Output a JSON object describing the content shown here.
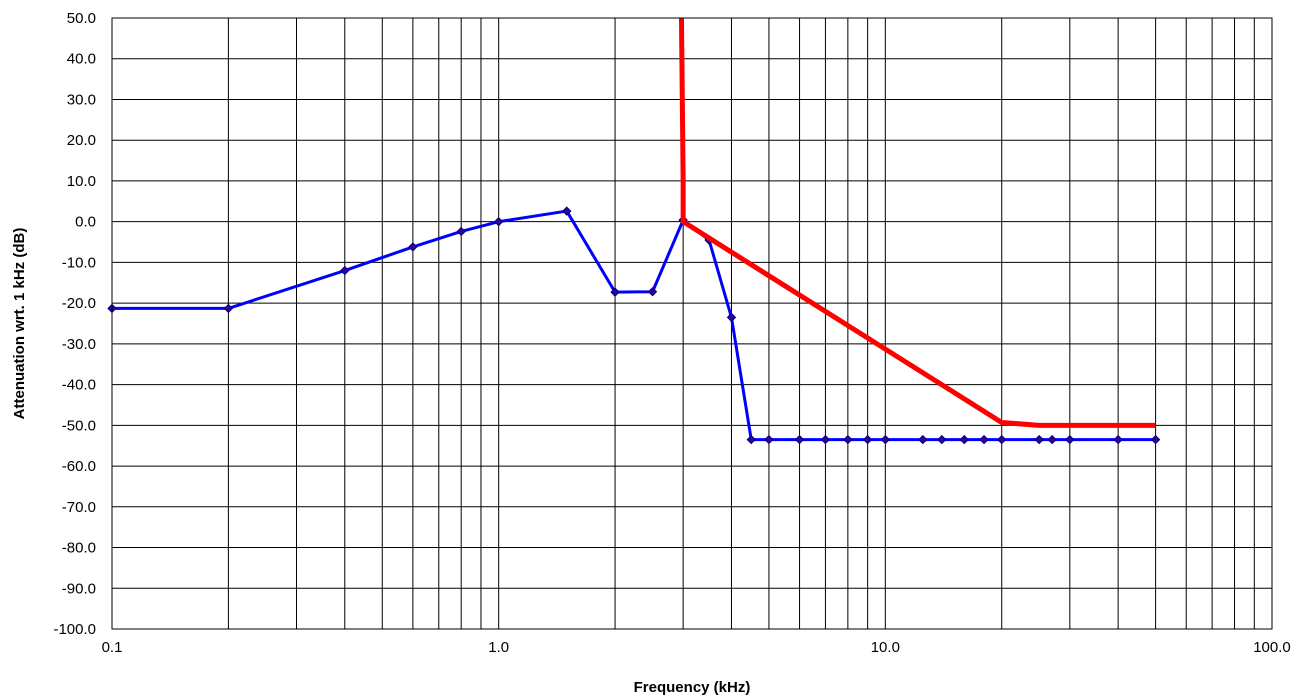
{
  "chart_data": {
    "type": "line",
    "title": "",
    "xlabel": "Frequency (kHz)",
    "ylabel": "Attenuation wrt. 1 kHz (dB)",
    "x_scale": "log",
    "xlim": [
      0.1,
      100
    ],
    "ylim": [
      -100,
      50
    ],
    "grid": true,
    "x_ticks": [
      "0.1",
      "1.0",
      "10.0",
      "100.0"
    ],
    "y_ticks": [
      "50.0",
      "40.0",
      "30.0",
      "20.0",
      "10.0",
      "0.0",
      "-10.0",
      "-20.0",
      "-30.0",
      "-40.0",
      "-50.0",
      "-60.0",
      "-70.0",
      "-80.0",
      "-90.0",
      "-100.0"
    ],
    "series": [
      {
        "color": "#0000ff",
        "markers": true,
        "x": [
          0.1,
          0.2,
          0.4,
          0.6,
          0.8,
          1.0,
          1.5,
          2.0,
          2.5,
          3.0,
          3.5,
          4.0,
          4.5,
          5.0,
          6.0,
          7.0,
          8.0,
          9.0,
          10.0,
          12.5,
          14.0,
          16.0,
          18.0,
          20.0,
          25.0,
          27.0,
          30.0,
          40.0,
          50.0
        ],
        "y": [
          -21.3,
          -21.3,
          -12.0,
          -6.2,
          -2.4,
          0.0,
          2.6,
          -17.3,
          -17.2,
          0.4,
          -4.5,
          -23.5,
          -53.5,
          -53.5,
          -53.5,
          -53.5,
          -53.5,
          -53.5,
          -53.5,
          -53.5,
          -53.5,
          -53.5,
          -53.5,
          -53.5,
          -53.5,
          -53.5,
          -53.5,
          -53.5,
          -53.5
        ]
      },
      {
        "color": "#ff0000",
        "markers": false,
        "x": [
          2.97,
          3.0,
          3.0,
          20.0,
          25.0,
          50.0
        ],
        "y": [
          50.0,
          10.0,
          0.0,
          -49.3,
          -50.0,
          -50.0
        ]
      }
    ]
  }
}
